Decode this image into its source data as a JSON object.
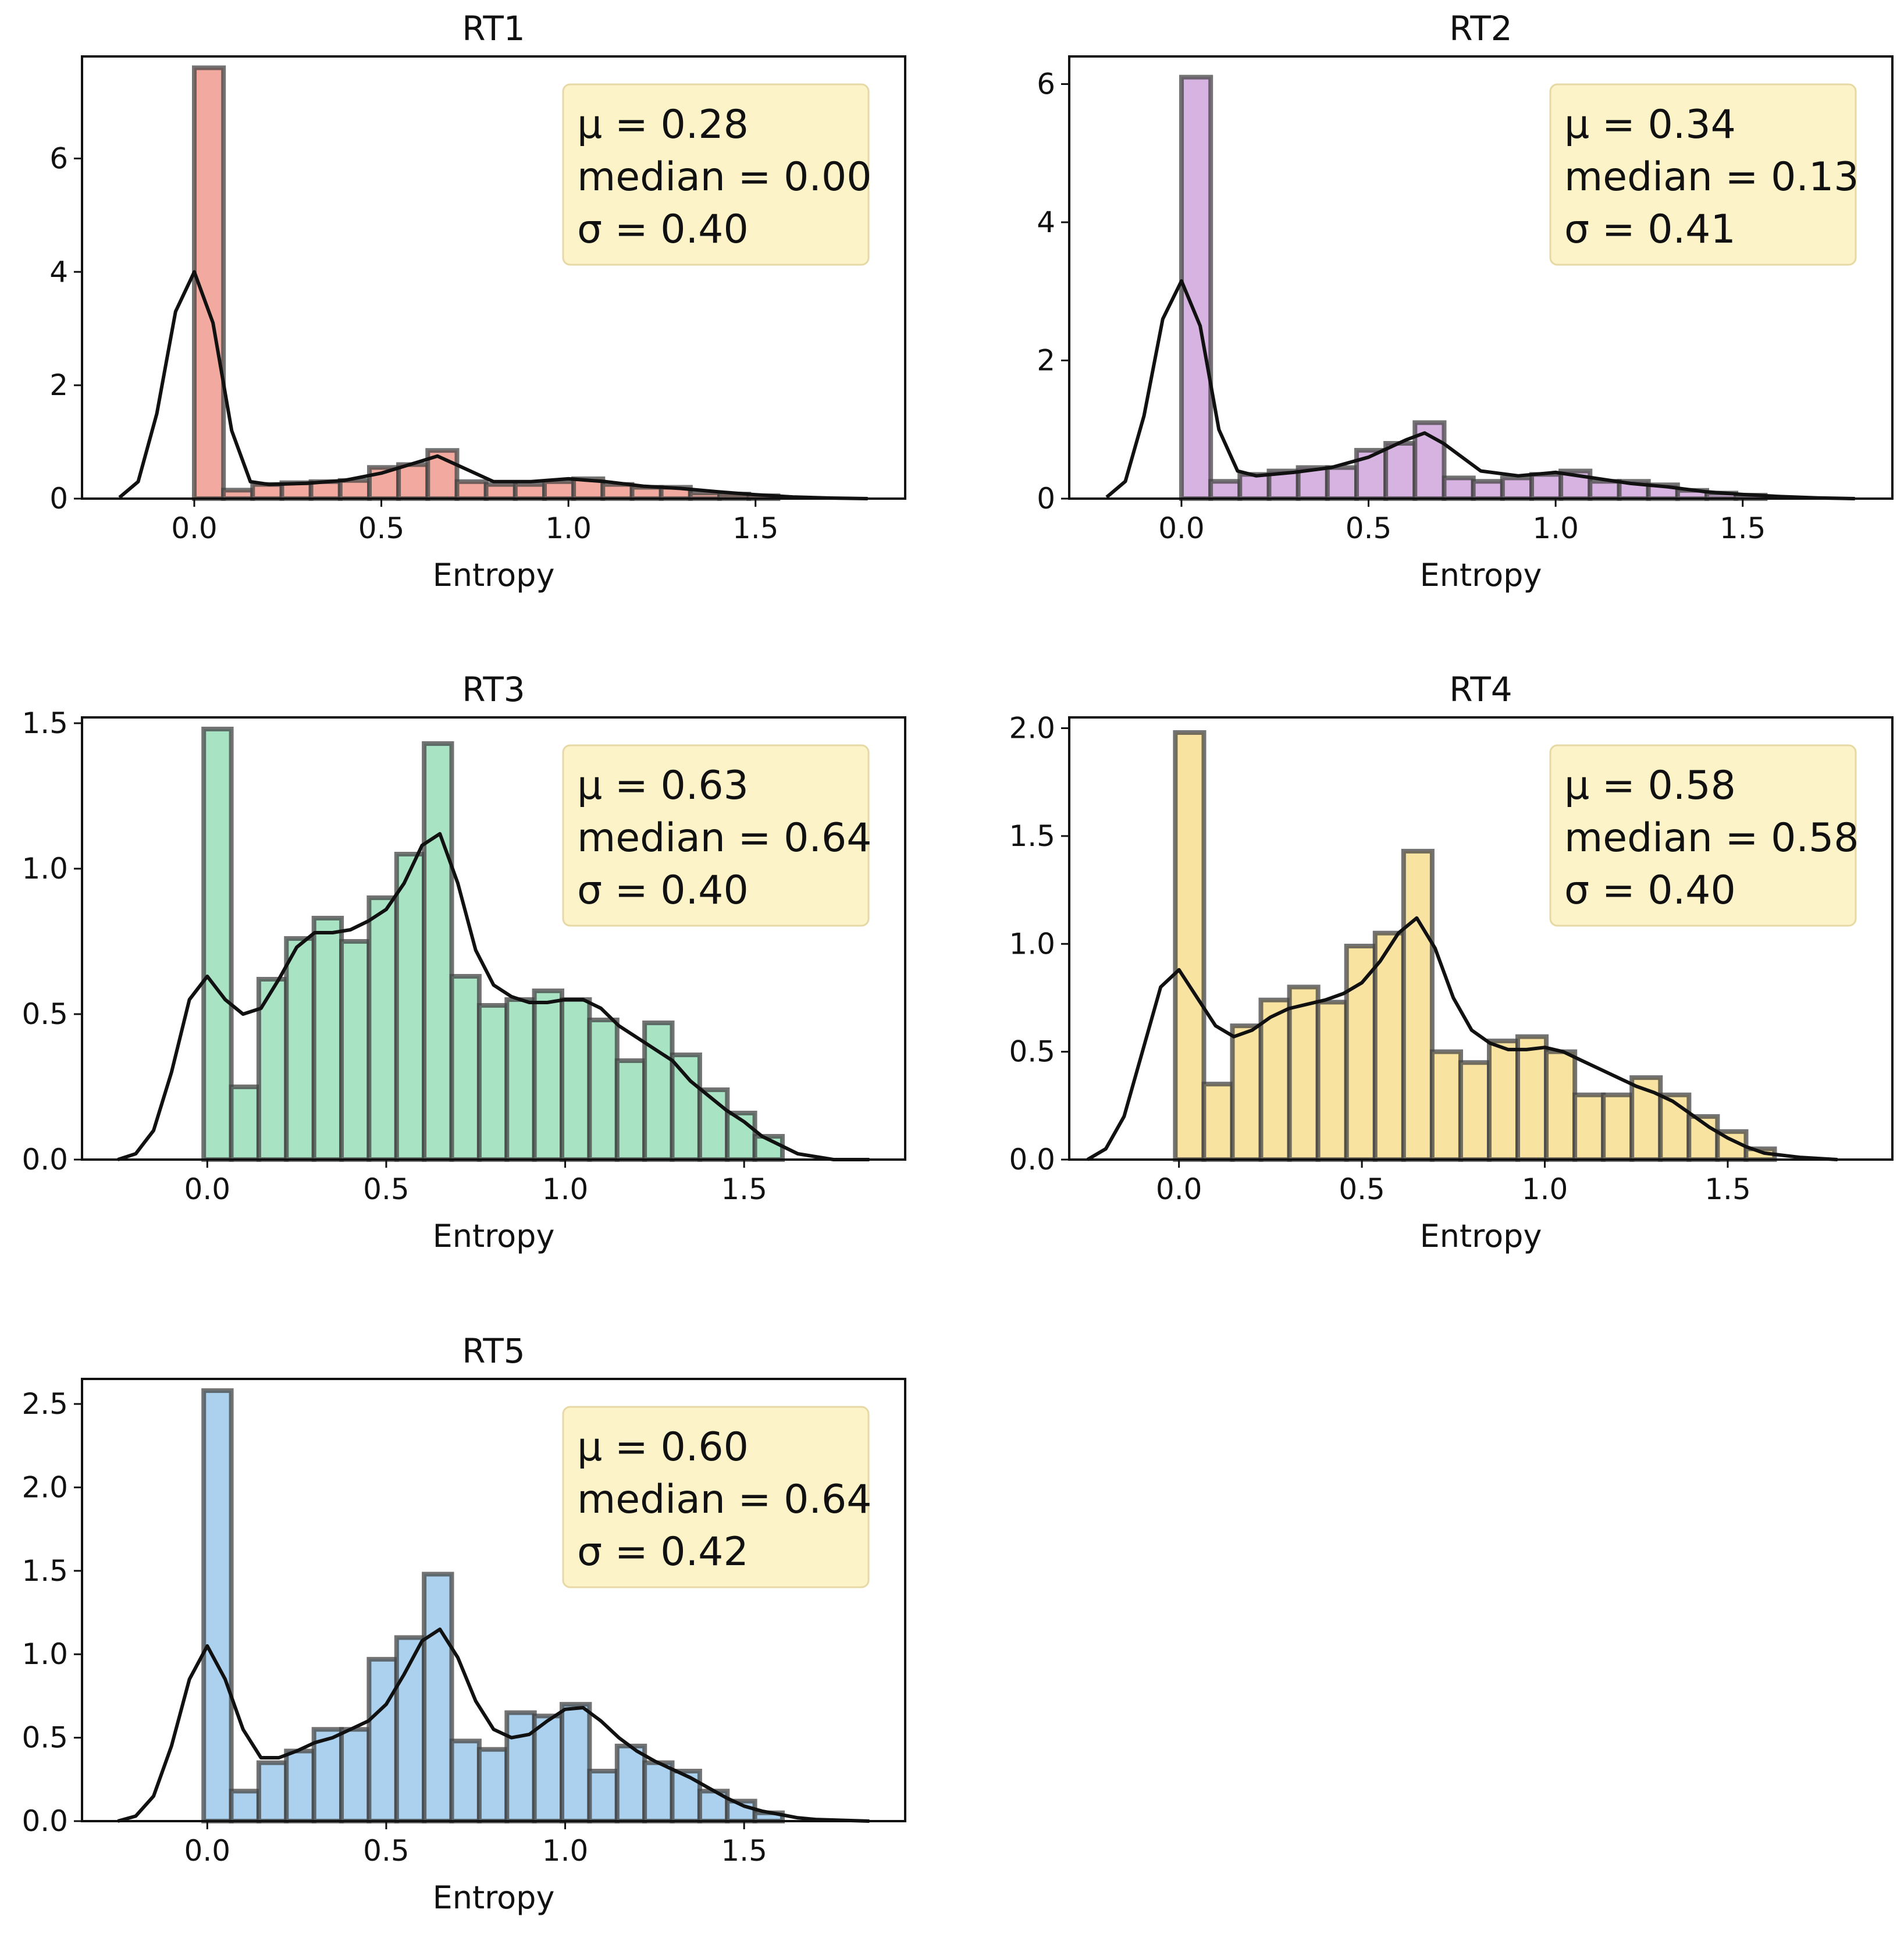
{
  "colors": {
    "kde": "#111111",
    "bar_edge": "#444444",
    "stats_box": "#fdf3c8"
  },
  "chart_data": [
    {
      "type": "bar",
      "title": "RT1",
      "xlabel": "Entropy",
      "ylabel": "",
      "color": "#f2aaa0",
      "xlim": [
        -0.3,
        1.9
      ],
      "ylim": [
        0,
        7.8
      ],
      "xticks": [
        0.0,
        0.5,
        1.0,
        1.5
      ],
      "xtick_labels": [
        "0.0",
        "0.5",
        "1.0",
        "1.5"
      ],
      "yticks": [
        0,
        2,
        4,
        6
      ],
      "ytick_labels": [
        "0",
        "2",
        "4",
        "6"
      ],
      "bin_width": 0.078,
      "bins_start": [
        0.0,
        0.078,
        0.156,
        0.234,
        0.312,
        0.39,
        0.468,
        0.546,
        0.624,
        0.702,
        0.78,
        0.858,
        0.936,
        1.014,
        1.092,
        1.17,
        1.248,
        1.326,
        1.404,
        1.482
      ],
      "values": [
        7.6,
        0.15,
        0.25,
        0.28,
        0.3,
        0.32,
        0.55,
        0.6,
        0.85,
        0.3,
        0.25,
        0.25,
        0.3,
        0.35,
        0.25,
        0.2,
        0.2,
        0.1,
        0.08,
        0.05
      ],
      "kde_x": [
        -0.2,
        -0.15,
        -0.1,
        -0.05,
        0.0,
        0.05,
        0.1,
        0.15,
        0.2,
        0.3,
        0.4,
        0.5,
        0.6,
        0.65,
        0.7,
        0.8,
        0.9,
        1.0,
        1.1,
        1.2,
        1.3,
        1.4,
        1.5,
        1.6,
        1.7,
        1.8
      ],
      "kde_y": [
        0.02,
        0.3,
        1.5,
        3.3,
        4.0,
        3.1,
        1.2,
        0.3,
        0.25,
        0.27,
        0.32,
        0.45,
        0.65,
        0.75,
        0.6,
        0.3,
        0.3,
        0.35,
        0.3,
        0.22,
        0.18,
        0.12,
        0.07,
        0.03,
        0.01,
        0.0
      ],
      "stats": {
        "mu": "μ = 0.28",
        "median": "median = 0.00",
        "sigma": "σ = 0.40"
      }
    },
    {
      "type": "bar",
      "title": "RT2",
      "xlabel": "Entropy",
      "ylabel": "",
      "color": "#d6b3e0",
      "xlim": [
        -0.3,
        1.9
      ],
      "ylim": [
        0,
        6.4
      ],
      "xticks": [
        0.0,
        0.5,
        1.0,
        1.5
      ],
      "xtick_labels": [
        "0.0",
        "0.5",
        "1.0",
        "1.5"
      ],
      "yticks": [
        0,
        2,
        4,
        6
      ],
      "ytick_labels": [
        "0",
        "2",
        "4",
        "6"
      ],
      "bin_width": 0.078,
      "bins_start": [
        0.0,
        0.078,
        0.156,
        0.234,
        0.312,
        0.39,
        0.468,
        0.546,
        0.624,
        0.702,
        0.78,
        0.858,
        0.936,
        1.014,
        1.092,
        1.17,
        1.248,
        1.326,
        1.404,
        1.482
      ],
      "values": [
        6.1,
        0.25,
        0.35,
        0.4,
        0.45,
        0.45,
        0.7,
        0.8,
        1.1,
        0.3,
        0.25,
        0.3,
        0.35,
        0.4,
        0.25,
        0.25,
        0.2,
        0.12,
        0.08,
        0.05
      ],
      "kde_x": [
        -0.2,
        -0.15,
        -0.1,
        -0.05,
        0.0,
        0.05,
        0.1,
        0.15,
        0.2,
        0.3,
        0.4,
        0.5,
        0.6,
        0.65,
        0.7,
        0.8,
        0.9,
        1.0,
        1.1,
        1.2,
        1.3,
        1.4,
        1.5,
        1.6,
        1.7,
        1.8
      ],
      "kde_y": [
        0.02,
        0.25,
        1.2,
        2.6,
        3.15,
        2.5,
        1.0,
        0.4,
        0.33,
        0.38,
        0.45,
        0.6,
        0.85,
        0.95,
        0.8,
        0.4,
        0.33,
        0.38,
        0.3,
        0.22,
        0.17,
        0.1,
        0.06,
        0.03,
        0.01,
        0.0
      ],
      "stats": {
        "mu": "μ = 0.34",
        "median": "median = 0.13",
        "sigma": "σ = 0.41"
      }
    },
    {
      "type": "bar",
      "title": "RT3",
      "xlabel": "Entropy",
      "ylabel": "",
      "color": "#a8e4c3",
      "xlim": [
        -0.35,
        1.95
      ],
      "ylim": [
        0,
        1.52
      ],
      "xticks": [
        0.0,
        0.5,
        1.0,
        1.5
      ],
      "xtick_labels": [
        "0.0",
        "0.5",
        "1.0",
        "1.5"
      ],
      "yticks": [
        0.0,
        0.5,
        1.0,
        1.5
      ],
      "ytick_labels": [
        "0.0",
        "0.5",
        "1.0",
        "1.5"
      ],
      "bin_width": 0.077,
      "bins_start": [
        -0.01,
        0.067,
        0.144,
        0.221,
        0.298,
        0.375,
        0.452,
        0.529,
        0.606,
        0.683,
        0.76,
        0.837,
        0.914,
        0.991,
        1.068,
        1.145,
        1.222,
        1.299,
        1.376,
        1.453,
        1.53
      ],
      "values": [
        1.48,
        0.25,
        0.62,
        0.76,
        0.83,
        0.75,
        0.9,
        1.05,
        1.43,
        0.63,
        0.53,
        0.55,
        0.58,
        0.55,
        0.48,
        0.34,
        0.47,
        0.36,
        0.24,
        0.16,
        0.08
      ],
      "kde_x": [
        -0.25,
        -0.2,
        -0.15,
        -0.1,
        -0.05,
        0.0,
        0.05,
        0.1,
        0.15,
        0.2,
        0.25,
        0.3,
        0.35,
        0.4,
        0.45,
        0.5,
        0.55,
        0.6,
        0.65,
        0.7,
        0.75,
        0.8,
        0.85,
        0.9,
        0.95,
        1.0,
        1.05,
        1.1,
        1.15,
        1.2,
        1.25,
        1.3,
        1.35,
        1.4,
        1.45,
        1.5,
        1.55,
        1.6,
        1.65,
        1.7,
        1.75,
        1.85
      ],
      "kde_y": [
        0.0,
        0.02,
        0.1,
        0.3,
        0.55,
        0.63,
        0.55,
        0.5,
        0.52,
        0.62,
        0.73,
        0.78,
        0.78,
        0.79,
        0.82,
        0.86,
        0.95,
        1.08,
        1.12,
        0.95,
        0.72,
        0.6,
        0.56,
        0.54,
        0.54,
        0.55,
        0.55,
        0.52,
        0.46,
        0.42,
        0.38,
        0.34,
        0.27,
        0.22,
        0.17,
        0.13,
        0.08,
        0.05,
        0.02,
        0.01,
        0.0,
        0.0
      ],
      "stats": {
        "mu": "μ = 0.63",
        "median": "median = 0.64",
        "sigma": "σ = 0.40"
      }
    },
    {
      "type": "bar",
      "title": "RT4",
      "xlabel": "Entropy",
      "ylabel": "",
      "color": "#f8e3a0",
      "xlim": [
        -0.3,
        1.95
      ],
      "ylim": [
        0,
        2.05
      ],
      "xticks": [
        0.0,
        0.5,
        1.0,
        1.5
      ],
      "xtick_labels": [
        "0.0",
        "0.5",
        "1.0",
        "1.5"
      ],
      "yticks": [
        0.0,
        0.5,
        1.0,
        1.5,
        2.0
      ],
      "ytick_labels": [
        "0.0",
        "0.5",
        "1.0",
        "1.5",
        "2.0"
      ],
      "bin_width": 0.078,
      "bins_start": [
        -0.01,
        0.068,
        0.146,
        0.224,
        0.302,
        0.38,
        0.458,
        0.536,
        0.614,
        0.692,
        0.77,
        0.848,
        0.926,
        1.004,
        1.082,
        1.16,
        1.238,
        1.316,
        1.394,
        1.472,
        1.55
      ],
      "values": [
        1.98,
        0.35,
        0.62,
        0.74,
        0.8,
        0.73,
        0.99,
        1.05,
        1.43,
        0.5,
        0.45,
        0.55,
        0.57,
        0.5,
        0.3,
        0.3,
        0.38,
        0.3,
        0.2,
        0.13,
        0.05
      ],
      "kde_x": [
        -0.25,
        -0.2,
        -0.15,
        -0.1,
        -0.05,
        0.0,
        0.05,
        0.1,
        0.15,
        0.2,
        0.25,
        0.3,
        0.35,
        0.4,
        0.45,
        0.5,
        0.55,
        0.6,
        0.65,
        0.7,
        0.75,
        0.8,
        0.85,
        0.9,
        0.95,
        1.0,
        1.05,
        1.1,
        1.15,
        1.2,
        1.25,
        1.3,
        1.35,
        1.4,
        1.45,
        1.5,
        1.55,
        1.6,
        1.65,
        1.7,
        1.8
      ],
      "kde_y": [
        0.0,
        0.05,
        0.2,
        0.5,
        0.8,
        0.88,
        0.75,
        0.62,
        0.57,
        0.6,
        0.66,
        0.7,
        0.72,
        0.74,
        0.77,
        0.82,
        0.92,
        1.05,
        1.12,
        0.98,
        0.75,
        0.6,
        0.54,
        0.51,
        0.51,
        0.52,
        0.5,
        0.46,
        0.42,
        0.38,
        0.34,
        0.31,
        0.27,
        0.21,
        0.15,
        0.1,
        0.06,
        0.03,
        0.02,
        0.01,
        0.0
      ],
      "stats": {
        "mu": "μ = 0.58",
        "median": "median = 0.58",
        "sigma": "σ = 0.40"
      }
    },
    {
      "type": "bar",
      "title": "RT5",
      "xlabel": "Entropy",
      "ylabel": "",
      "color": "#abd1ee",
      "xlim": [
        -0.35,
        1.95
      ],
      "ylim": [
        0,
        2.65
      ],
      "xticks": [
        0.0,
        0.5,
        1.0,
        1.5
      ],
      "xtick_labels": [
        "0.0",
        "0.5",
        "1.0",
        "1.5"
      ],
      "yticks": [
        0.0,
        0.5,
        1.0,
        1.5,
        2.0,
        2.5
      ],
      "ytick_labels": [
        "0.0",
        "0.5",
        "1.0",
        "1.5",
        "2.0",
        "2.5"
      ],
      "bin_width": 0.077,
      "bins_start": [
        -0.01,
        0.067,
        0.144,
        0.221,
        0.298,
        0.375,
        0.452,
        0.529,
        0.606,
        0.683,
        0.76,
        0.837,
        0.914,
        0.991,
        1.068,
        1.145,
        1.222,
        1.299,
        1.376,
        1.453,
        1.53
      ],
      "values": [
        2.58,
        0.18,
        0.35,
        0.42,
        0.55,
        0.55,
        0.97,
        1.1,
        1.48,
        0.48,
        0.43,
        0.65,
        0.63,
        0.7,
        0.3,
        0.45,
        0.35,
        0.3,
        0.18,
        0.12,
        0.05
      ],
      "kde_x": [
        -0.25,
        -0.2,
        -0.15,
        -0.1,
        -0.05,
        0.0,
        0.05,
        0.1,
        0.15,
        0.2,
        0.25,
        0.3,
        0.35,
        0.4,
        0.45,
        0.5,
        0.55,
        0.6,
        0.65,
        0.7,
        0.75,
        0.8,
        0.85,
        0.9,
        0.95,
        1.0,
        1.05,
        1.1,
        1.15,
        1.2,
        1.25,
        1.3,
        1.35,
        1.4,
        1.45,
        1.5,
        1.55,
        1.6,
        1.65,
        1.7,
        1.85
      ],
      "kde_y": [
        0.0,
        0.03,
        0.15,
        0.45,
        0.85,
        1.05,
        0.85,
        0.55,
        0.38,
        0.38,
        0.42,
        0.47,
        0.5,
        0.55,
        0.6,
        0.7,
        0.88,
        1.08,
        1.15,
        0.98,
        0.72,
        0.55,
        0.5,
        0.52,
        0.6,
        0.67,
        0.68,
        0.6,
        0.5,
        0.42,
        0.36,
        0.31,
        0.26,
        0.2,
        0.14,
        0.09,
        0.06,
        0.04,
        0.02,
        0.01,
        0.0
      ],
      "stats": {
        "mu": "μ = 0.60",
        "median": "median = 0.64",
        "sigma": "σ = 0.42"
      }
    }
  ]
}
